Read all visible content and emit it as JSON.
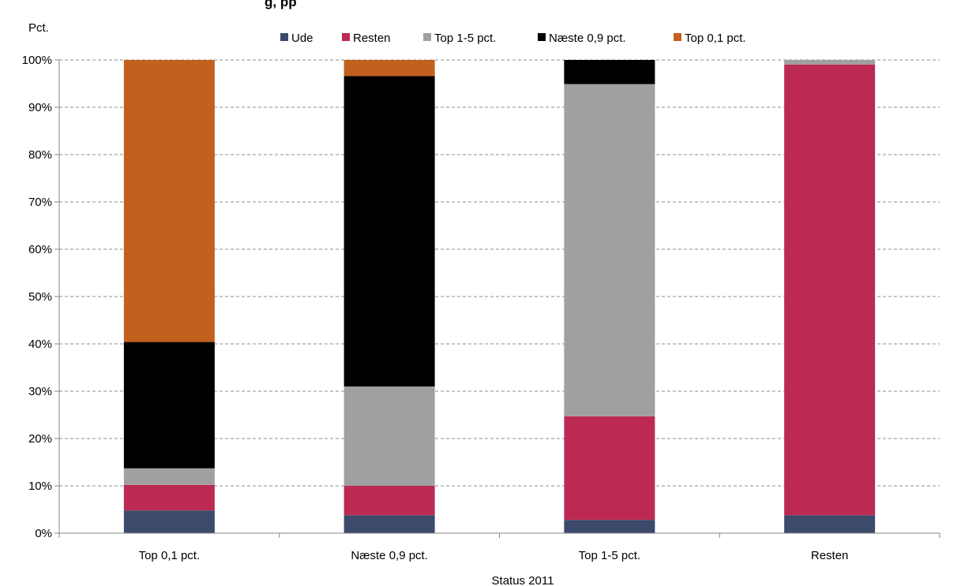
{
  "chart_data": {
    "type": "bar",
    "stacked": true,
    "normalized_percent": true,
    "title_fragment": "g, pp",
    "ylabel": "Pct.",
    "xlabel": "Status 2011",
    "ylim": [
      0,
      100
    ],
    "yticks": [
      "0%",
      "10%",
      "20%",
      "30%",
      "40%",
      "50%",
      "60%",
      "70%",
      "80%",
      "90%",
      "100%"
    ],
    "grid": true,
    "legend_position": "top",
    "categories": [
      "Top 0,1 pct.",
      "Næste 0,9 pct.",
      "Top 1-5 pct.",
      "Resten"
    ],
    "series": [
      {
        "name": "Ude",
        "color": "#3c4a6b",
        "values": [
          4.8,
          3.8,
          2.8,
          3.8
        ]
      },
      {
        "name": "Resten",
        "color": "#bc2a53",
        "values": [
          5.4,
          6.2,
          21.9,
          95.2
        ]
      },
      {
        "name": "Top 1-5 pct.",
        "color": "#a0a0a0",
        "values": [
          3.5,
          21.0,
          70.2,
          1.0
        ]
      },
      {
        "name": "Næste 0,9 pct.",
        "color": "#000000",
        "values": [
          26.7,
          65.6,
          5.1,
          0.0
        ]
      },
      {
        "name": "Top 0,1 pct.",
        "color": "#c3601d",
        "values": [
          59.6,
          3.4,
          0.0,
          0.0
        ]
      }
    ]
  }
}
